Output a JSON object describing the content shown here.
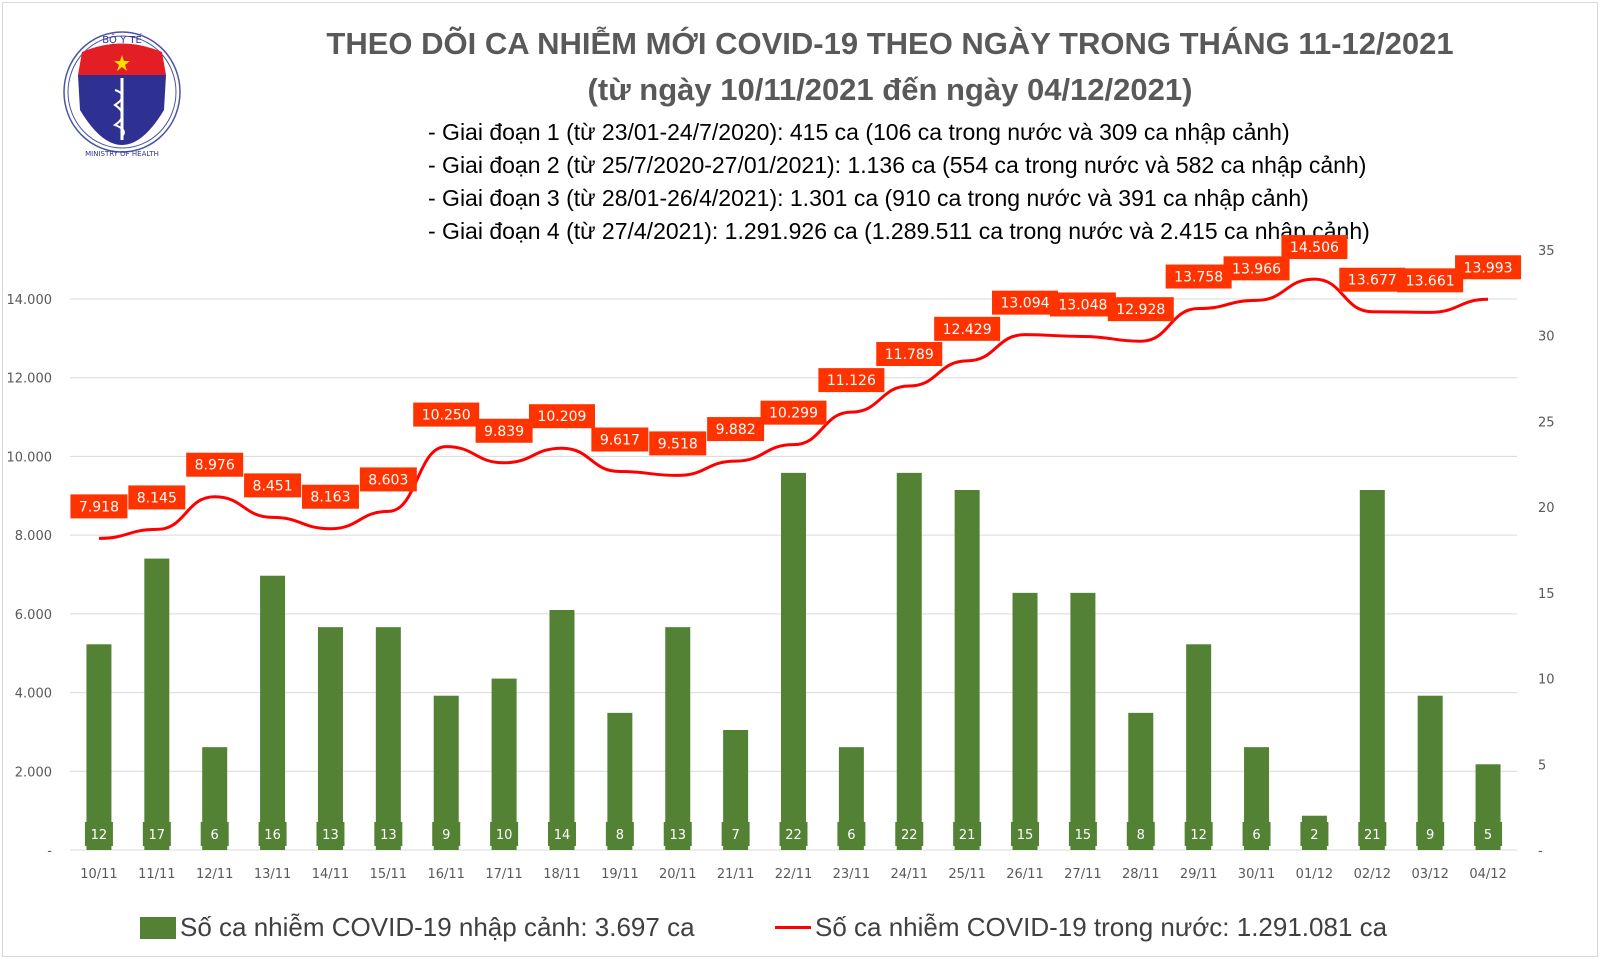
{
  "logo": {
    "top_text": "BỘ Y TẾ",
    "bottom_text": "MINISTRY OF HEALTH"
  },
  "title": "THEO DÕI CA NHIỄM MỚI COVID-19 THEO NGÀY TRONG THÁNG 11-12/2021",
  "subtitle": "(từ ngày 10/11/2021 đến ngày 04/12/2021)",
  "notes": [
    "- Giai đoạn 1 (từ 23/01-24/7/2020): 415 ca (106 ca trong nước và 309 ca nhập cảnh)",
    "- Giai đoạn 2 (từ 25/7/2020-27/01/2021): 1.136 ca (554 ca trong nước và 582 ca nhập cảnh)",
    "- Giai đoạn 3 (từ 28/01-26/4/2021): 1.301 ca (910 ca trong nước và 391 ca nhập cảnh)",
    "- Giai đoạn 4 (từ 27/4/2021): 1.291.926 ca (1.289.511 ca trong nước và 2.415 ca nhập cảnh)"
  ],
  "chart_data": {
    "type": "bar+line",
    "categories": [
      "10/11",
      "11/11",
      "12/11",
      "13/11",
      "14/11",
      "15/11",
      "16/11",
      "17/11",
      "18/11",
      "19/11",
      "20/11",
      "21/11",
      "22/11",
      "23/11",
      "24/11",
      "25/11",
      "26/11",
      "27/11",
      "28/11",
      "29/11",
      "30/11",
      "01/12",
      "02/12",
      "03/12",
      "04/12"
    ],
    "series": [
      {
        "name": "Số ca nhiễm COVID-19 nhập cảnh: 3.697 ca",
        "type": "bar",
        "axis": "right",
        "color": "#548235",
        "values": [
          12,
          17,
          6,
          16,
          13,
          13,
          9,
          10,
          14,
          8,
          13,
          7,
          22,
          6,
          22,
          21,
          15,
          15,
          8,
          12,
          6,
          2,
          21,
          9,
          5
        ]
      },
      {
        "name": "Số ca nhiễm COVID-19 trong nước: 1.291.081 ca",
        "type": "line",
        "axis": "left",
        "color": "#ff0000",
        "values": [
          7918,
          8145,
          8976,
          8451,
          8163,
          8603,
          10250,
          9839,
          10209,
          9617,
          9518,
          9882,
          10299,
          11126,
          11789,
          12429,
          13094,
          13048,
          12928,
          13758,
          13966,
          14506,
          13677,
          13661,
          13993
        ],
        "labels": [
          "7.918",
          "8.145",
          "8.976",
          "8.451",
          "8.163",
          "8.603",
          "10.250",
          "9.839",
          "10.209",
          "9.617",
          "9.518",
          "9.882",
          "10.299",
          "11.126",
          "11.789",
          "12.429",
          "13.094",
          "13.048",
          "12.928",
          "13.758",
          "13.966",
          "14.506",
          "13.677",
          "13.661",
          "13.993"
        ]
      }
    ],
    "left_axis": {
      "ticks": [
        "-",
        "2.000",
        "4.000",
        "6.000",
        "8.000",
        "10.000",
        "12.000",
        "14.000"
      ],
      "tick_values": [
        0,
        2000,
        4000,
        6000,
        8000,
        10000,
        12000,
        14000
      ]
    },
    "right_axis": {
      "ticks": [
        "-",
        "5",
        "10",
        "15",
        "20",
        "25",
        "30",
        "35"
      ],
      "tick_values": [
        0,
        5,
        10,
        15,
        20,
        25,
        30,
        35
      ],
      "ylim": [
        0,
        35
      ]
    },
    "grid": true,
    "legend": "bottom",
    "legend_labels": [
      "Số ca nhiễm COVID-19 nhập cảnh: 3.697 ca",
      "Số ca nhiễm COVID-19 trong nước: 1.291.081 ca"
    ]
  }
}
